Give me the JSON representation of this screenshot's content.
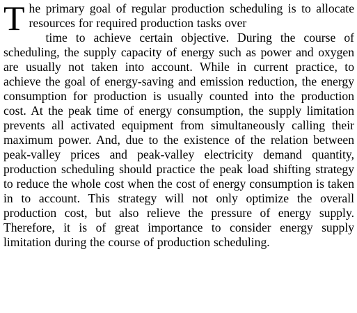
{
  "paragraph": {
    "dropcap": "T",
    "after_dropcap": "he primary goal of regular production scheduling is to allocate resources for required production tasks over",
    "body": "time to achieve certain objective.  During the course of scheduling, the supply capacity of energy such as power and oxygen are usually not taken into account.  While in current practice, to achieve the goal of energy-saving and emission reduction, the energy consumption for production is usually counted into the production cost.  At the peak time of energy consumption, the supply limitation prevents all activated equipment from simultaneously calling their maximum power.  And, due to the existence of the relation between peak-valley prices and peak-valley electricity demand quantity, production scheduling should practice the peak load shifting strategy to reduce the whole cost when the cost of energy consumption is taken in to account.  This strategy will not only optimize the overall production cost, but also relieve the pressure of energy supply.  Therefore, it is of great importance to consider energy supply limitation during the course of production scheduling."
  }
}
